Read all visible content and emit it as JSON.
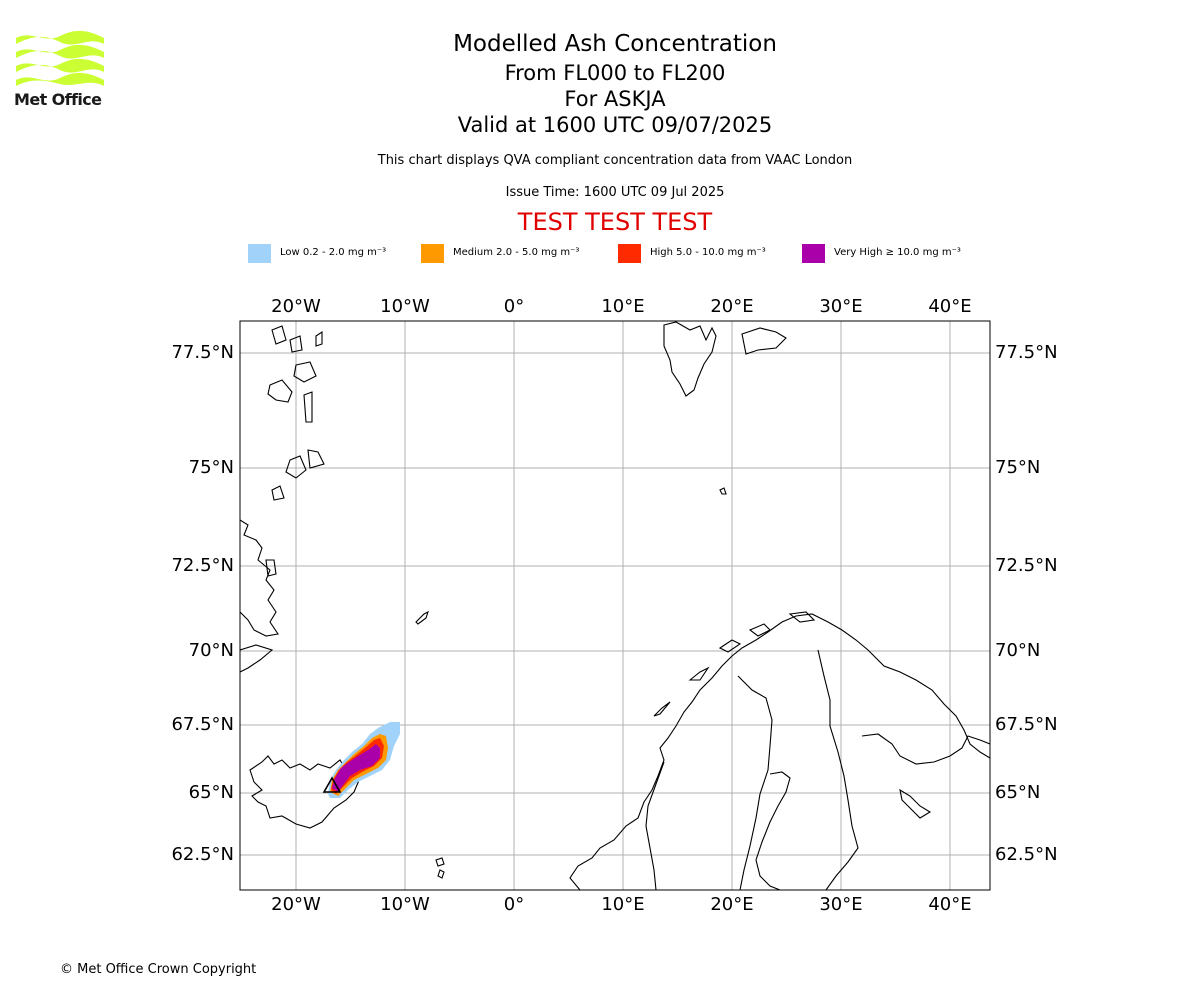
{
  "logo": {
    "text": "Met Office",
    "color": "#ccff33"
  },
  "title": {
    "main": "Modelled Ash Concentration",
    "levels": "From FL000 to FL200",
    "volcano": "For ASKJA",
    "valid": "Valid at 1600 UTC 09/07/2025",
    "note": "This chart displays QVA compliant concentration data from VAAC London",
    "issue": "Issue Time: 1600 UTC 09 Jul 2025",
    "test": "TEST TEST TEST"
  },
  "legend": [
    {
      "label": "Low 0.2 - 2.0 mg m⁻³",
      "color": "#a0d2fa"
    },
    {
      "label": "Medium 2.0 - 5.0 mg m⁻³",
      "color": "#ff9900"
    },
    {
      "label": "High 5.0 - 10.0 mg m⁻³",
      "color": "#ff2a00"
    },
    {
      "label": "Very High ≥ 10.0 mg m⁻³",
      "color": "#aa00aa"
    }
  ],
  "map": {
    "lon_labels": [
      "20°W",
      "10°W",
      "0°",
      "10°E",
      "20°E",
      "30°E",
      "40°E"
    ],
    "lat_labels": [
      "77.5°N",
      "75°N",
      "72.5°N",
      "70°N",
      "67.5°N",
      "65°N",
      "62.5°N"
    ],
    "volcano_marker": "triangle",
    "gridline_color": "#b0b0b0"
  },
  "copyright": "© Met Office Crown Copyright"
}
